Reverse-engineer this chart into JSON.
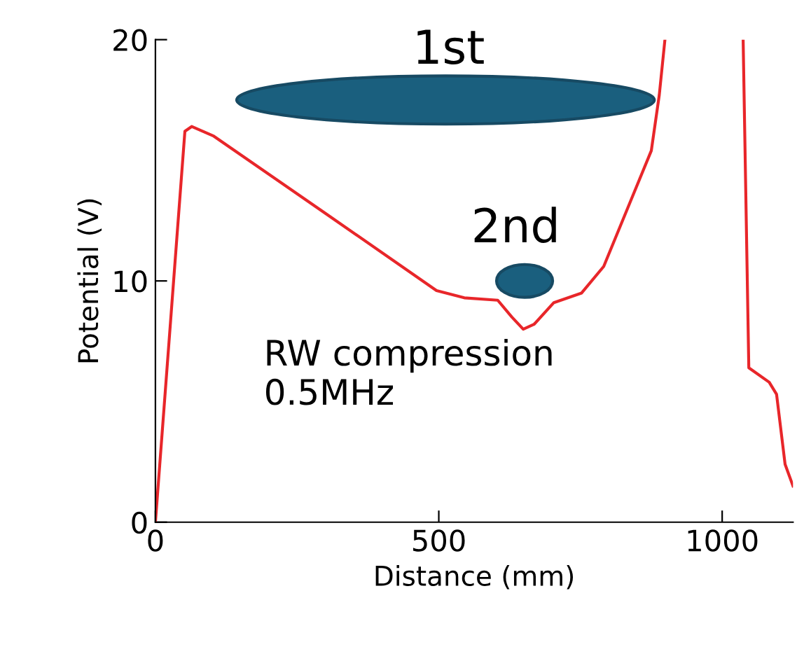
{
  "chart_data": {
    "type": "line",
    "xlabel": "Distance (mm)",
    "ylabel": "Potential (V)",
    "annotations": [
      "1st",
      "2nd",
      "RW compression\n0.5MHz"
    ],
    "x": [
      0,
      52,
      64,
      103,
      300,
      496,
      545,
      604,
      629,
      649,
      668,
      703,
      752,
      791,
      840,
      875,
      889,
      899,
      1000,
      1037,
      1047,
      1083,
      1096,
      1111,
      1125
    ],
    "series": [
      {
        "color": "#e8262a",
        "values": [
          0,
          16.2,
          16.4,
          16.0,
          12.8,
          9.6,
          9.3,
          9.2,
          8.5,
          8.0,
          8.2,
          9.1,
          9.5,
          10.6,
          13.4,
          15.4,
          17.7,
          20,
          null,
          20,
          6.4,
          5.8,
          5.3,
          2.4,
          1.5
        ]
      }
    ],
    "xlim": [
      0,
      1125
    ],
    "ylim": [
      0,
      20
    ],
    "xticks": [
      0,
      500,
      1000
    ],
    "yticks": [
      0,
      10,
      20
    ],
    "grid": false,
    "legend": false,
    "marker": "none",
    "line_style": "solid"
  }
}
